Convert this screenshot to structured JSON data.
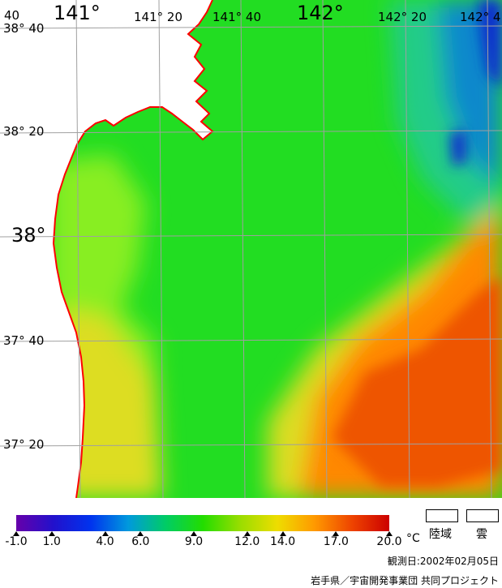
{
  "map": {
    "lon_labels": [
      "141°",
      "141° 20",
      "141° 40",
      "142°",
      "142° 20",
      "142° 4"
    ],
    "lat_labels": [
      "38° 40",
      "38° 20",
      "38°",
      "37° 40",
      "37° 20"
    ],
    "corner_fragment": "40",
    "colors": {
      "land": "#ffffff",
      "coast": "#ff0000",
      "grid": "#a0a0a0",
      "sea_green": "#22dd22",
      "sea_light": "#88ee22",
      "sea_yellow": "#dddd22",
      "sea_orange": "#ff8800",
      "sea_redorange": "#ee5500",
      "sea_cyan": "#22cc88",
      "sea_blue": "#1188cc",
      "sea_darkblue": "#1133cc"
    }
  },
  "colorbar": {
    "unit": "°C",
    "tick_labels": [
      "-1.0",
      "1.0",
      "4.0",
      "6.0",
      "9.0",
      "12.0",
      "14.0",
      "17.0",
      "20.0"
    ],
    "gradient_colors": [
      "#6600aa",
      "#2211cc",
      "#0033ee",
      "#0099dd",
      "#00cc66",
      "#22dd00",
      "#99dd00",
      "#eedd00",
      "#ff9900",
      "#ee4400",
      "#cc0000"
    ]
  },
  "legend": {
    "land_label": "陸域",
    "cloud_label": "雲"
  },
  "footer": {
    "observation_date": "観測日:2002年02月05日",
    "credit": "岩手県／宇宙開発事業団 共同プロジェクト"
  }
}
